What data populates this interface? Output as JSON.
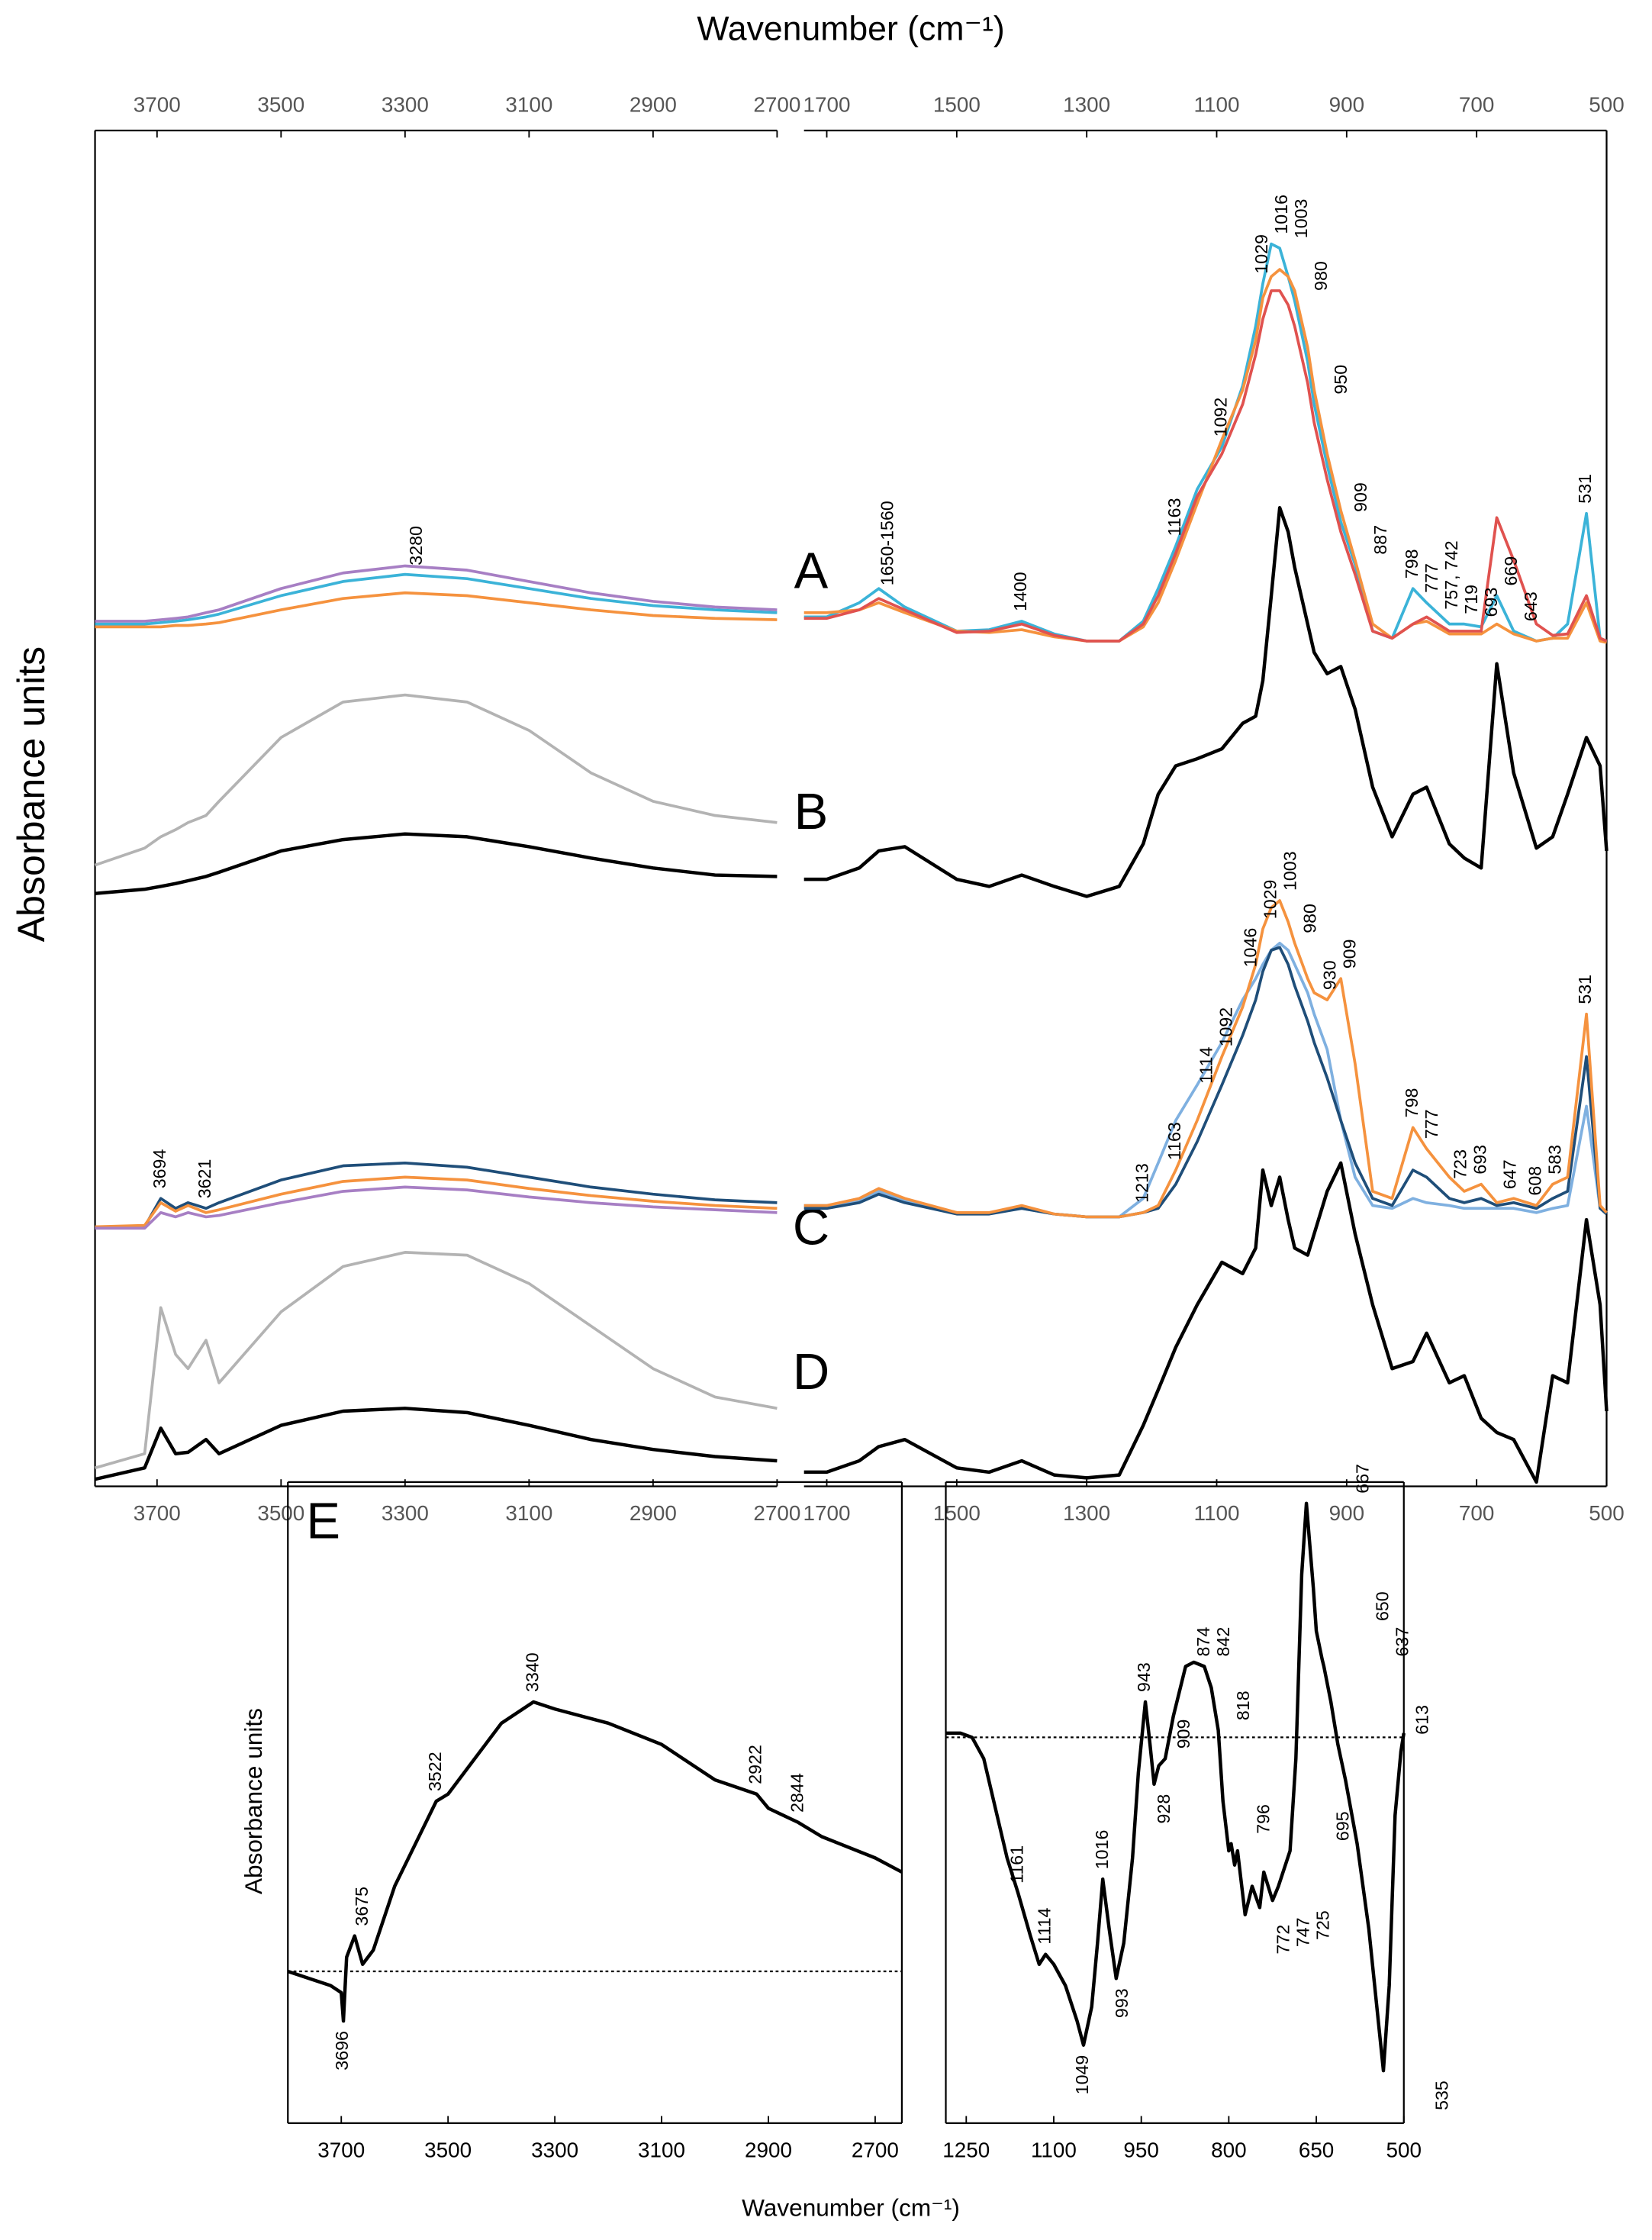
{
  "chart_data": [
    {
      "type": "line",
      "xlabel": "Wavenumber (cm⁻¹)",
      "ylabel": "Absorbance units",
      "xlim": [
        3800,
        2700
      ],
      "xticks": [
        3700,
        3500,
        3300,
        3100,
        2900,
        2700
      ],
      "ylim": [
        0,
        95.6
      ],
      "x": [
        3800,
        3720,
        3694,
        3670,
        3650,
        3621,
        3600,
        3500,
        3400,
        3300,
        3200,
        3100,
        3000,
        2900,
        2800,
        2700
      ],
      "series": [
        {
          "color": "#3bb3d8",
          "values": [
            60.8,
            60.8,
            60.9,
            61.0,
            61.1,
            61.3,
            61.5,
            62.8,
            63.8,
            64.3,
            64.0,
            63.3,
            62.6,
            62.1,
            61.8,
            61.6
          ],
          "annotations": [
            3280
          ]
        },
        {
          "color": "#f5923e",
          "values": [
            60.6,
            60.6,
            60.6,
            60.7,
            60.7,
            60.8,
            60.9,
            61.8,
            62.6,
            63.0,
            62.8,
            62.3,
            61.8,
            61.4,
            61.2,
            61.1
          ]
        },
        {
          "color": "#a77fc4",
          "values": [
            61.0,
            61.0,
            61.1,
            61.2,
            61.3,
            61.6,
            61.8,
            63.3,
            64.4,
            64.9,
            64.6,
            63.8,
            63.0,
            62.4,
            62.0,
            61.8
          ]
        },
        {
          "color": "#b3b3b3",
          "values": [
            43.8,
            45.0,
            45.8,
            46.3,
            46.8,
            47.3,
            48.3,
            52.8,
            55.3,
            55.8,
            55.3,
            53.3,
            50.3,
            48.3,
            47.3,
            46.8
          ]
        },
        {
          "color": "#000000",
          "values": [
            41.8,
            42.1,
            42.3,
            42.5,
            42.7,
            43.0,
            43.3,
            44.8,
            45.6,
            46.0,
            45.8,
            45.1,
            44.3,
            43.6,
            43.1,
            43.0
          ]
        },
        {
          "color": "#1f4e79",
          "values": [
            18.3,
            18.3,
            20.3,
            19.6,
            20.0,
            19.6,
            20.0,
            21.6,
            22.6,
            22.8,
            22.5,
            21.8,
            21.1,
            20.6,
            20.2,
            20.0
          ],
          "annotations": [
            3694,
            3621
          ]
        },
        {
          "color": "#f5923e",
          "values": [
            18.3,
            18.4,
            20.0,
            19.4,
            19.8,
            19.3,
            19.5,
            20.6,
            21.5,
            21.8,
            21.6,
            21.0,
            20.5,
            20.1,
            19.8,
            19.6
          ]
        },
        {
          "color": "#a77fc4",
          "values": [
            18.2,
            18.2,
            19.3,
            19.0,
            19.3,
            19.0,
            19.1,
            20.0,
            20.8,
            21.1,
            20.9,
            20.4,
            20.0,
            19.7,
            19.5,
            19.3
          ]
        },
        {
          "color": "#b3b3b3",
          "values": [
            1.3,
            2.3,
            12.6,
            9.3,
            8.3,
            10.3,
            7.3,
            12.3,
            15.5,
            16.5,
            16.3,
            14.3,
            11.3,
            8.3,
            6.3,
            5.5
          ]
        },
        {
          "color": "#000000",
          "values": [
            0.5,
            1.3,
            4.1,
            2.3,
            2.4,
            3.3,
            2.3,
            4.3,
            5.3,
            5.5,
            5.2,
            4.3,
            3.3,
            2.6,
            2.1,
            1.8
          ]
        }
      ]
    },
    {
      "type": "line",
      "panel_labels": [
        "A",
        "B",
        "C",
        "D"
      ],
      "xlim": [
        1735,
        500
      ],
      "xticks": [
        1700,
        1500,
        1300,
        1100,
        900,
        700,
        500
      ],
      "ylim": [
        0,
        95.6
      ],
      "x": [
        1735,
        1700,
        1650,
        1620,
        1580,
        1500,
        1450,
        1400,
        1350,
        1300,
        1250,
        1213,
        1190,
        1163,
        1130,
        1092,
        1060,
        1040,
        1029,
        1016,
        1003,
        990,
        980,
        960,
        950,
        930,
        909,
        887,
        860,
        830,
        798,
        777,
        742,
        719,
        693,
        669,
        643,
        608,
        583,
        560,
        531,
        510,
        500
      ],
      "series": [
        {
          "color": "#3bb3d8",
          "values": [
            61.3,
            61.3,
            62.3,
            63.3,
            62.0,
            60.3,
            60.4,
            61.0,
            60.1,
            59.6,
            59.6,
            61.0,
            63.3,
            66.3,
            70.3,
            73.3,
            77.6,
            81.8,
            84.8,
            87.6,
            87.3,
            85.3,
            83.6,
            79.3,
            76.3,
            72.0,
            68.0,
            65.0,
            60.3,
            59.8,
            63.3,
            62.3,
            60.8,
            60.8,
            60.6,
            62.8,
            60.3,
            59.6,
            59.8,
            60.8,
            68.6,
            59.8,
            59.6
          ],
          "annotations": [
            "1650-1560",
            1400,
            1163,
            1092,
            1029,
            1016,
            1003,
            980,
            950,
            909,
            887,
            798,
            777,
            "757, 742",
            719,
            693,
            669,
            643,
            531
          ]
        },
        {
          "color": "#f5923e",
          "values": [
            61.6,
            61.6,
            61.8,
            62.3,
            61.6,
            60.3,
            60.2,
            60.4,
            59.9,
            59.6,
            59.6,
            60.6,
            62.3,
            65.3,
            69.3,
            73.8,
            77.3,
            80.8,
            83.8,
            85.3,
            85.8,
            85.3,
            84.3,
            80.3,
            77.3,
            72.8,
            68.8,
            65.3,
            60.8,
            59.8,
            60.8,
            61.0,
            60.1,
            60.1,
            60.1,
            60.8,
            60.1,
            59.6,
            59.8,
            59.8,
            62.3,
            59.6,
            59.5
          ]
        },
        {
          "color": "#e0524f",
          "values": [
            61.2,
            61.2,
            61.8,
            62.6,
            61.8,
            60.2,
            60.3,
            60.8,
            60.0,
            59.6,
            59.6,
            60.8,
            62.8,
            65.8,
            69.8,
            72.8,
            76.3,
            79.8,
            82.3,
            84.3,
            84.3,
            83.3,
            81.8,
            77.8,
            75.0,
            71.0,
            67.3,
            64.3,
            60.3,
            59.8,
            60.8,
            61.3,
            60.3,
            60.3,
            60.3,
            68.3,
            65.3,
            60.8,
            60.0,
            60.1,
            62.8,
            59.8,
            59.6
          ]
        },
        {
          "color": "#000000",
          "values": [
            42.8,
            42.8,
            43.6,
            44.8,
            45.1,
            42.8,
            42.3,
            43.1,
            42.3,
            41.6,
            42.3,
            45.3,
            48.8,
            50.8,
            51.3,
            52.0,
            53.8,
            54.3,
            56.8,
            62.8,
            69.0,
            67.3,
            64.8,
            60.8,
            58.8,
            57.3,
            57.8,
            54.8,
            49.3,
            45.8,
            48.8,
            49.3,
            45.3,
            44.3,
            43.6,
            58.0,
            50.3,
            45.0,
            45.8,
            48.8,
            52.8,
            50.8,
            44.8
          ]
        },
        {
          "color": "#7fb0e0",
          "values": [
            19.8,
            19.8,
            20.1,
            20.8,
            20.2,
            19.3,
            19.3,
            19.6,
            19.2,
            19.0,
            19.0,
            20.3,
            22.8,
            25.8,
            28.3,
            31.3,
            34.3,
            35.8,
            36.8,
            37.8,
            38.3,
            37.8,
            36.8,
            34.8,
            33.3,
            30.8,
            25.8,
            21.8,
            19.8,
            19.6,
            20.3,
            20.0,
            19.8,
            19.6,
            19.6,
            19.6,
            19.6,
            19.3,
            19.6,
            19.8,
            26.8,
            19.6,
            19.3
          ]
        },
        {
          "color": "#1f4e79",
          "values": [
            19.6,
            19.6,
            20.0,
            20.6,
            20.0,
            19.2,
            19.2,
            19.6,
            19.2,
            19.0,
            19.0,
            19.3,
            19.6,
            21.3,
            24.3,
            28.3,
            31.8,
            34.3,
            36.3,
            37.8,
            38.0,
            36.8,
            35.3,
            32.8,
            31.3,
            28.8,
            25.8,
            22.8,
            20.3,
            19.8,
            22.3,
            21.8,
            20.3,
            20.0,
            20.3,
            19.8,
            20.0,
            19.6,
            20.3,
            20.8,
            30.3,
            19.6,
            19.2
          ]
        },
        {
          "color": "#f5923e",
          "values": [
            19.8,
            19.8,
            20.3,
            21.0,
            20.3,
            19.3,
            19.3,
            19.8,
            19.2,
            19.0,
            19.0,
            19.3,
            19.8,
            22.3,
            25.8,
            30.3,
            33.8,
            36.8,
            39.3,
            40.8,
            41.3,
            39.8,
            38.3,
            35.8,
            34.8,
            34.3,
            35.8,
            29.8,
            20.8,
            20.3,
            25.3,
            23.8,
            21.8,
            20.8,
            21.3,
            20.0,
            20.3,
            19.8,
            21.3,
            21.8,
            33.3,
            19.8,
            19.3
          ],
          "annotations": [
            1213,
            1163,
            1114,
            1092,
            1046,
            1029,
            1003,
            980,
            930,
            909,
            798,
            777,
            723,
            693,
            647,
            608,
            583,
            531
          ]
        },
        {
          "color": "#000000",
          "values": [
            1.0,
            1.0,
            1.8,
            2.8,
            3.3,
            1.3,
            1.0,
            1.8,
            0.8,
            0.6,
            0.8,
            4.3,
            6.8,
            9.8,
            12.8,
            15.8,
            15.0,
            16.8,
            22.3,
            19.8,
            21.8,
            18.8,
            16.8,
            16.3,
            17.8,
            20.8,
            22.8,
            17.8,
            12.8,
            8.3,
            8.8,
            10.8,
            7.3,
            7.8,
            4.8,
            3.8,
            3.3,
            0.3,
            7.8,
            7.3,
            18.8,
            12.8,
            5.3
          ]
        }
      ]
    },
    {
      "type": "line",
      "panel_label": "E",
      "xlabel": "Wavenumber (cm⁻¹)",
      "ylabel": "Absorbance units",
      "xlim": [
        3800,
        2650
      ],
      "xticks": [
        3700,
        3500,
        3300,
        3100,
        2900,
        2700
      ],
      "ylim": [
        0,
        45.2
      ],
      "baseline": 10.7,
      "x": [
        3800,
        3760,
        3720,
        3700,
        3696,
        3690,
        3675,
        3660,
        3640,
        3600,
        3522,
        3500,
        3400,
        3340,
        3300,
        3200,
        3100,
        3000,
        2922,
        2900,
        2844,
        2800,
        2700,
        2650
      ],
      "series": [
        {
          "color": "#000000",
          "values": [
            10.7,
            10.2,
            9.7,
            9.2,
            7.2,
            11.7,
            13.2,
            11.2,
            12.2,
            16.7,
            22.7,
            23.2,
            28.2,
            29.7,
            29.2,
            28.2,
            26.7,
            24.2,
            23.2,
            22.2,
            21.2,
            20.2,
            18.7,
            17.7
          ],
          "annotations": [
            3675,
            3696,
            3522,
            3340,
            2922,
            2844
          ]
        }
      ]
    },
    {
      "type": "line",
      "xlim": [
        1285,
        500
      ],
      "xticks": [
        1250,
        1100,
        950,
        800,
        650,
        500
      ],
      "ylim": [
        0,
        45.2
      ],
      "baseline": 27.2,
      "x": [
        1285,
        1260,
        1240,
        1220,
        1200,
        1180,
        1161,
        1140,
        1125,
        1114,
        1100,
        1080,
        1060,
        1049,
        1035,
        1025,
        1016,
        1005,
        993,
        980,
        965,
        955,
        943,
        935,
        928,
        920,
        909,
        895,
        874,
        860,
        842,
        830,
        818,
        810,
        800,
        796,
        790,
        785,
        772,
        760,
        747,
        740,
        725,
        715,
        695,
        685,
        675,
        667,
        655,
        650,
        640,
        637,
        625,
        613,
        600,
        580,
        560,
        545,
        535,
        525,
        515,
        505,
        500
      ],
      "series": [
        {
          "color": "#000000",
          "values": [
            27.5,
            27.5,
            27.2,
            25.7,
            22.2,
            18.7,
            16.2,
            13.2,
            11.2,
            11.9,
            11.2,
            9.7,
            7.2,
            5.5,
            8.2,
            12.7,
            17.2,
            13.7,
            10.2,
            12.7,
            18.7,
            24.7,
            29.7,
            26.7,
            23.9,
            25.2,
            25.7,
            28.7,
            32.2,
            32.5,
            32.2,
            30.7,
            27.7,
            22.7,
            19.2,
            19.7,
            18.2,
            19.2,
            14.7,
            16.7,
            15.2,
            17.7,
            15.7,
            16.7,
            19.2,
            25.7,
            38.7,
            43.7,
            37.7,
            34.7,
            32.7,
            32.2,
            29.7,
            26.7,
            24.2,
            19.7,
            13.7,
            7.7,
            3.7,
            9.7,
            21.7,
            26.2,
            27.5
          ],
          "annotations": [
            1161,
            1114,
            1049,
            1016,
            993,
            943,
            928,
            909,
            874,
            842,
            818,
            796,
            772,
            747,
            725,
            695,
            667,
            650,
            637,
            613,
            535
          ]
        }
      ]
    }
  ]
}
